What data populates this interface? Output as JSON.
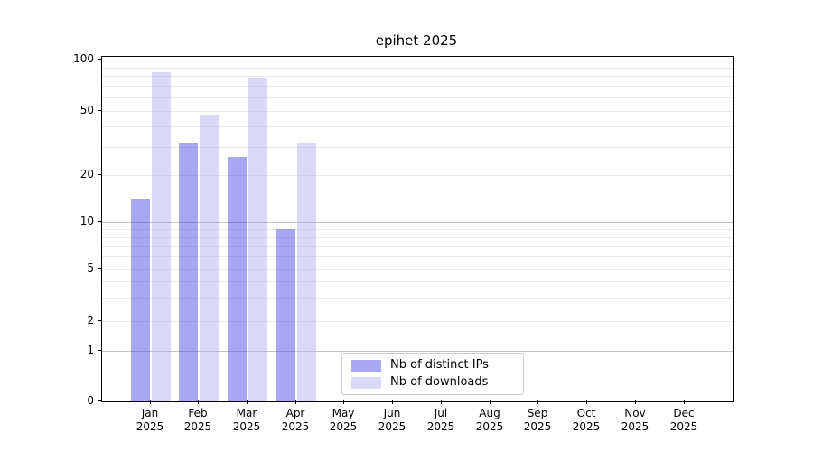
{
  "chart_data": {
    "type": "bar",
    "title": "epihet 2025",
    "x": {
      "months": [
        "Jan",
        "Feb",
        "Mar",
        "Apr",
        "May",
        "Jun",
        "Jul",
        "Aug",
        "Sep",
        "Oct",
        "Nov",
        "Dec"
      ],
      "year": "2025"
    },
    "series": [
      {
        "name": "Nb of distinct IPs",
        "color": "#a6a6f2",
        "fill": "rgba(57,57,226,0.45)",
        "values": [
          14,
          32,
          26,
          9,
          0,
          0,
          0,
          0,
          0,
          0,
          0,
          0
        ]
      },
      {
        "name": "Nb of downloads",
        "color": "#d9d9f7",
        "fill": "rgba(171,171,237,0.45)",
        "values": [
          85,
          48,
          79,
          32,
          0,
          0,
          0,
          0,
          0,
          0,
          0,
          0
        ]
      }
    ],
    "yaxis": {
      "scale": "symlog",
      "ticks": [
        0,
        1,
        2,
        5,
        10,
        20,
        50,
        100
      ],
      "major_gridlines": [
        1,
        10,
        100
      ],
      "minor_gridlines": [
        3,
        4,
        6,
        7,
        8,
        9,
        30,
        40,
        60,
        70,
        80,
        90
      ],
      "ylim": [
        0,
        105
      ]
    },
    "legend_position": "lower center",
    "grid": true
  }
}
